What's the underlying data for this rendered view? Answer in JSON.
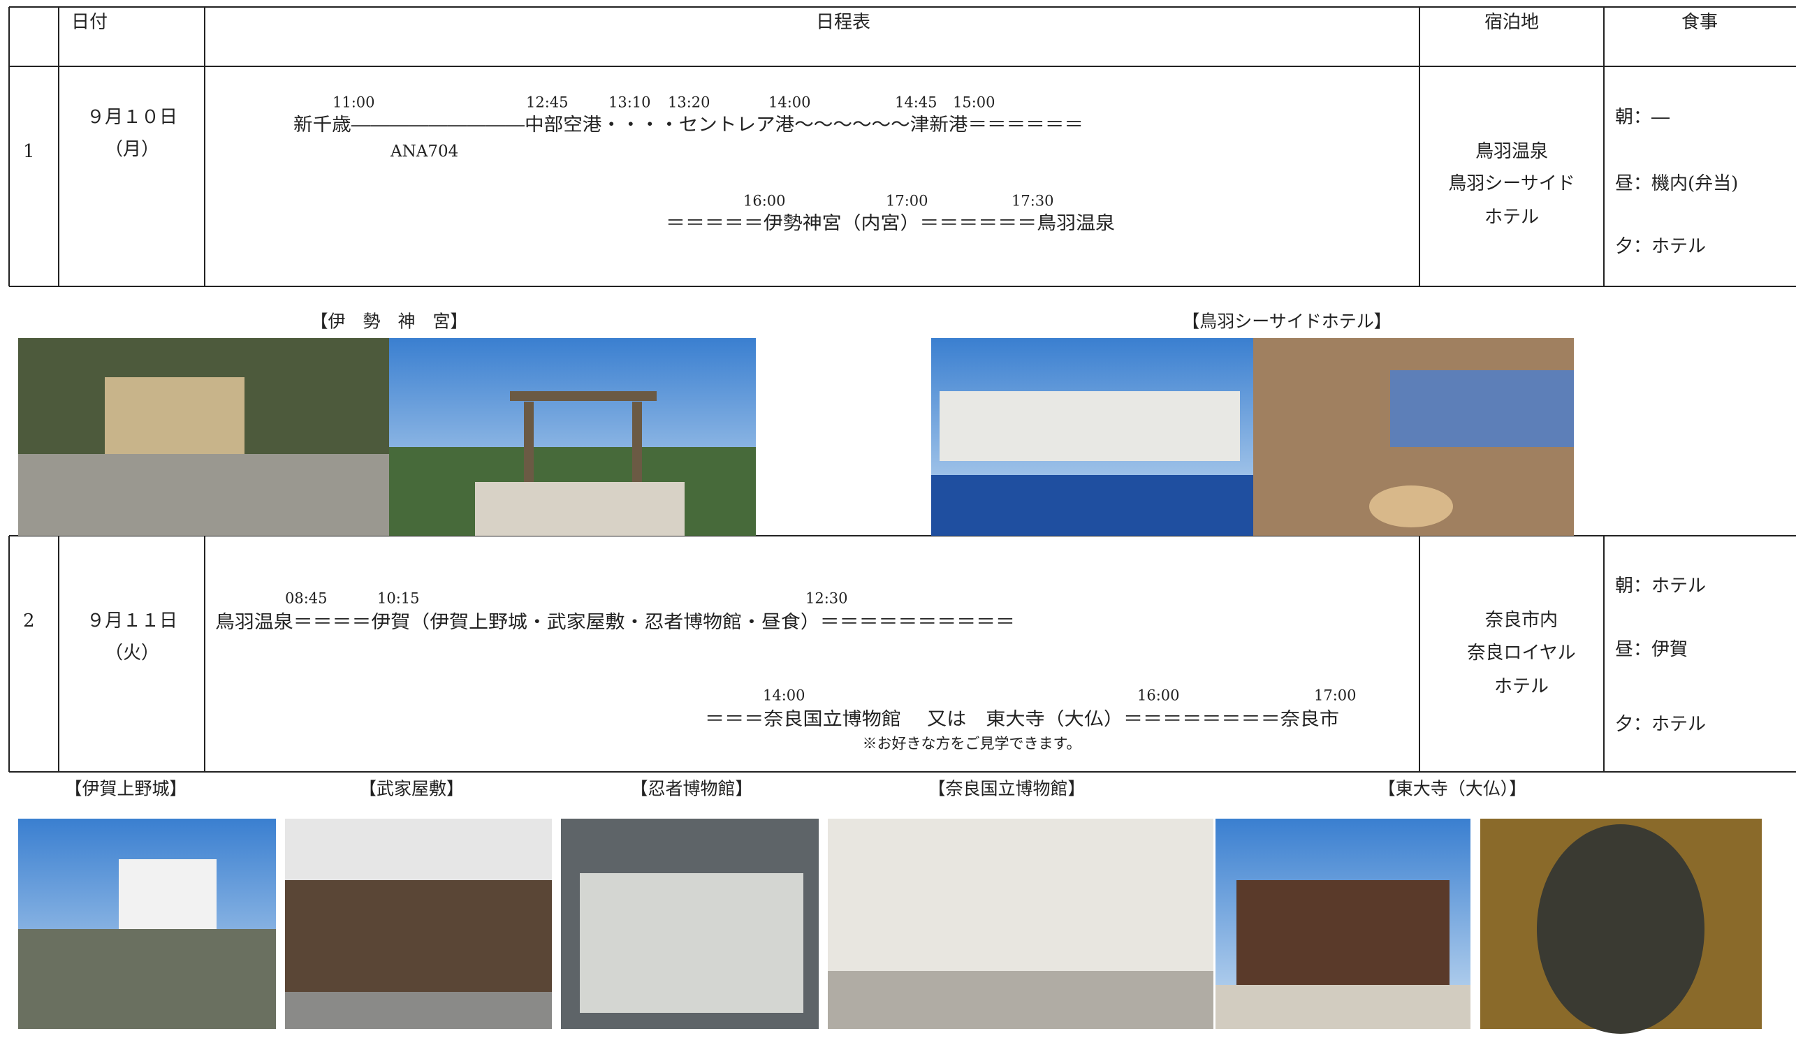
{
  "header": {
    "columns": [
      "日付",
      "日程表",
      "宿泊地",
      "食事"
    ]
  },
  "days": [
    {
      "no": "1",
      "date": "９月１０日",
      "weekday": "（月）",
      "schedule": [
        {
          "times": [
            "11:00",
            "12:45",
            "13:10",
            "13:20",
            "14:00",
            "14:45",
            "15:00"
          ],
          "text": "新千歳―――――――――中部空港・・・・セントレア港～～～～～～津新港＝＝＝＝＝＝",
          "flight": "ANA704"
        },
        {
          "times": [
            "16:00",
            "17:00",
            "17:30"
          ],
          "text": "＝＝＝＝＝伊勢神宮（内宮）＝＝＝＝＝＝鳥羽温泉"
        }
      ],
      "lodging": [
        "鳥羽温泉",
        "鳥羽シーサイド",
        "ホテル"
      ],
      "meals": [
        "朝：―",
        "昼：機内(弁当)",
        "夕：ホテル"
      ]
    },
    {
      "no": "2",
      "date": "９月１１日",
      "weekday": "（火）",
      "schedule": [
        {
          "times": [
            "08:45",
            "10:15",
            "12:30"
          ],
          "text": "鳥羽温泉＝＝＝＝伊賀（伊賀上野城・武家屋敷・忍者博物館・昼食）＝＝＝＝＝＝＝＝＝＝"
        },
        {
          "times": [
            "14:00",
            "16:00",
            "17:00"
          ],
          "text": "＝＝＝奈良国立博物館　 又は　東大寺（大仏）＝＝＝＝＝＝＝＝奈良市",
          "note": "※お好きな方をご見学できます。"
        }
      ],
      "lodging": [
        "奈良市内",
        "奈良ロイヤル",
        "ホテル"
      ],
      "meals": [
        "朝：ホテル",
        "昼：伊賀",
        "夕：ホテル"
      ]
    }
  ],
  "photos": [
    {
      "captions": [
        "【伊　勢　神　宮】",
        "【鳥羽シーサイドホテル】"
      ]
    },
    {
      "captions": [
        "【伊賀上野城】",
        "【武家屋敷】",
        "【忍者博物館】",
        "【奈良国立博物館】",
        "【東大寺（大仏）】"
      ]
    }
  ]
}
